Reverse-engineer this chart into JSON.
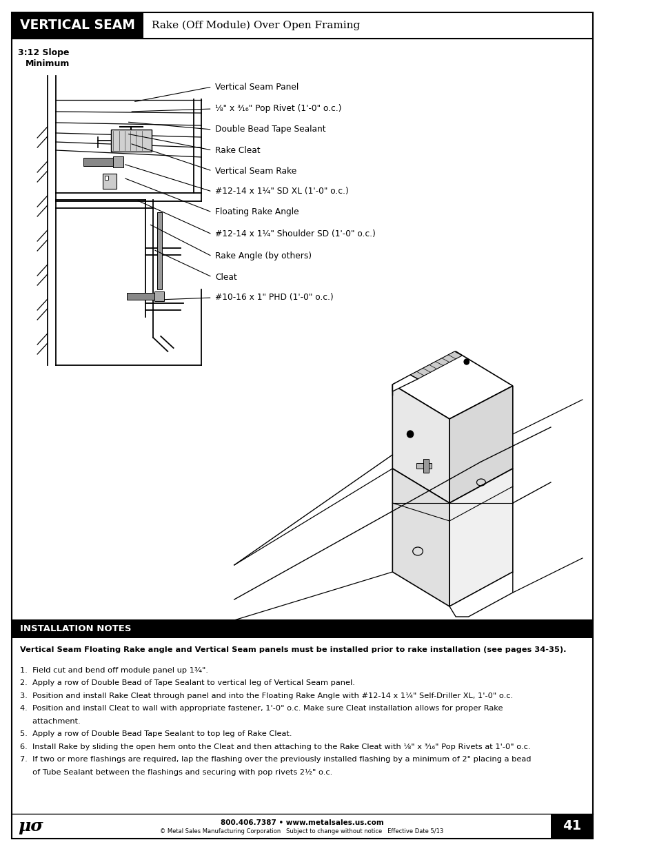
{
  "page_bg": "#ffffff",
  "border_color": "#000000",
  "header_bg": "#000000",
  "header_text": "VERTICAL SEAM",
  "header_text_color": "#ffffff",
  "header_subtitle": "Rake (Off Module) Over Open Framing",
  "header_subtitle_color": "#000000",
  "slope_label": "3:12 Slope\nMinimum",
  "callouts": [
    "Vertical Seam Panel",
    "¹⁄₈\" x ³⁄₁₆\" Pop Rivet (1'-0\" o.c.)",
    "Double Bead Tape Sealant",
    "Rake Cleat",
    "Vertical Seam Rake",
    "#12-14 x 1¹⁄₄\" SD XL (1'-0\" o.c.)",
    "Floating Rake Angle",
    "#12-14 x 1¹⁄₄\" Shoulder SD (1'-0\" o.c.)",
    "Rake Angle (by others)",
    "Cleat",
    "#10-16 x 1\" PHD (1'-0\" o.c.)"
  ],
  "notes_header_bg": "#000000",
  "notes_header_text": "INSTALLATION NOTES",
  "notes_header_text_color": "#ffffff",
  "notes_bold_line": "Vertical Seam Floating Rake angle and Vertical Seam panels must be installed prior to rake installation (see pages 34-35).",
  "notes_items": [
    "1.  Field cut and bend off module panel up 1¾\".",
    "2.  Apply a row of Double Bead of Tape Sealant to vertical leg of Vertical Seam panel.",
    "3.  Position and install Rake Cleat through panel and into the Floating Rake Angle with #12-14 x 1¹⁄₄\" Self-Driller XL, 1'-0\" o.c.",
    "4.  Position and install Cleat to wall with appropriate fastener, 1'-0\" o.c. Make sure Cleat installation allows for proper Rake",
    "     attachment.",
    "5.  Apply a row of Double Bead Tape Sealant to top leg of Rake Cleat.",
    "6.  Install Rake by sliding the open hem onto the Cleat and then attaching to the Rake Cleat with ¹⁄₈\" x ³⁄₁₆\" Pop Rivets at 1'-0\" o.c.",
    "7.  If two or more flashings are required, lap the flashing over the previously installed flashing by a minimum of 2\" placing a bead",
    "     of Tube Sealant between the flashings and securing with pop rivets 2½\" o.c."
  ],
  "footer_center_line1": "800.406.7387 • www.metalsales.us.com",
  "footer_center_line2": "© Metal Sales Manufacturing Corporation   Subject to change without notice   Effective Date 5/13",
  "footer_page": "41"
}
